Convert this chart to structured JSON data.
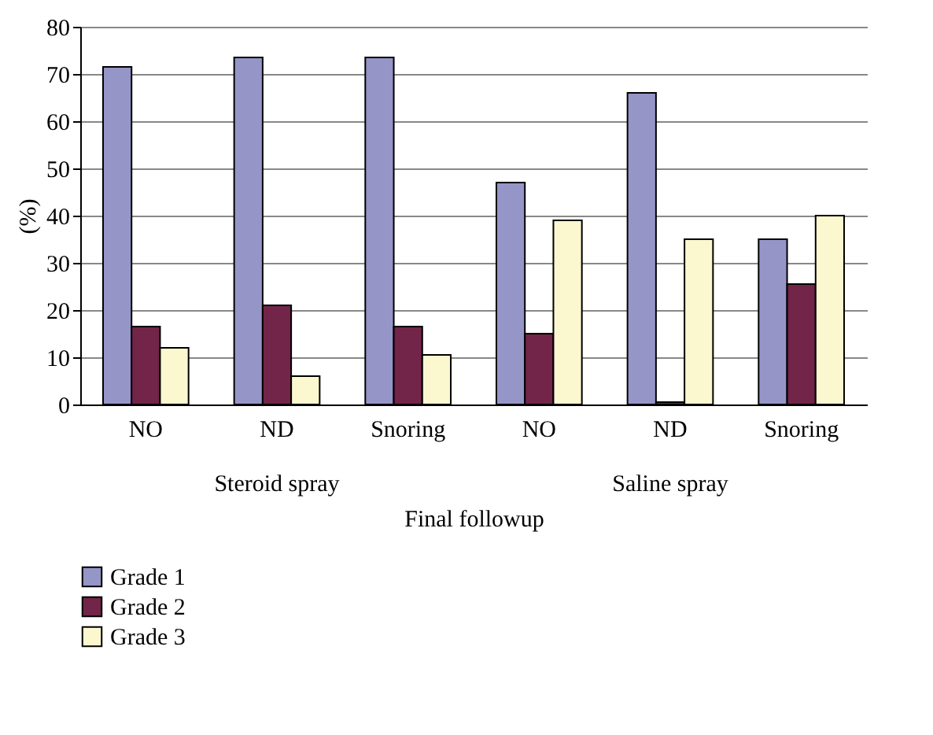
{
  "chart_data": {
    "type": "bar",
    "categories": [
      "NO",
      "ND",
      "Snoring",
      "NO",
      "ND",
      "Snoring"
    ],
    "series": [
      {
        "name": "Grade 1",
        "color": "#9595c8",
        "values": [
          71.5,
          73.5,
          73.5,
          47,
          66,
          35
        ]
      },
      {
        "name": "Grade 2",
        "color": "#722548",
        "values": [
          16.5,
          21,
          16.5,
          15,
          0.5,
          25.5
        ]
      },
      {
        "name": "Grade 3",
        "color": "#fbf7cf",
        "values": [
          12,
          6,
          10.5,
          39,
          35,
          40
        ]
      }
    ],
    "ylabel": "(%)",
    "xlabel": "Final followup",
    "annotations": [
      "Steroid spray",
      "Saline spray"
    ],
    "ylim": [
      0,
      80
    ],
    "yticks": [
      0,
      10,
      20,
      30,
      40,
      50,
      60,
      70,
      80
    ],
    "grid": "y",
    "legend": "bottom left"
  }
}
